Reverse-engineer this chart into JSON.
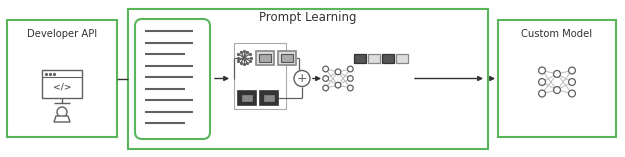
{
  "bg_color": "#ffffff",
  "green_border": "#5ab55a",
  "gray_color": "#606060",
  "dark_gray": "#333333",
  "light_gray": "#bbbbbb",
  "token_dark": "#222222",
  "token_mid": "#666666",
  "token_light": "#aaaaaa",
  "title_prompt_learning": "Prompt Learning",
  "label_developer_api": "Developer API",
  "label_custom_model": "Custom Model",
  "figsize": [
    6.25,
    1.57
  ],
  "dpi": 100
}
